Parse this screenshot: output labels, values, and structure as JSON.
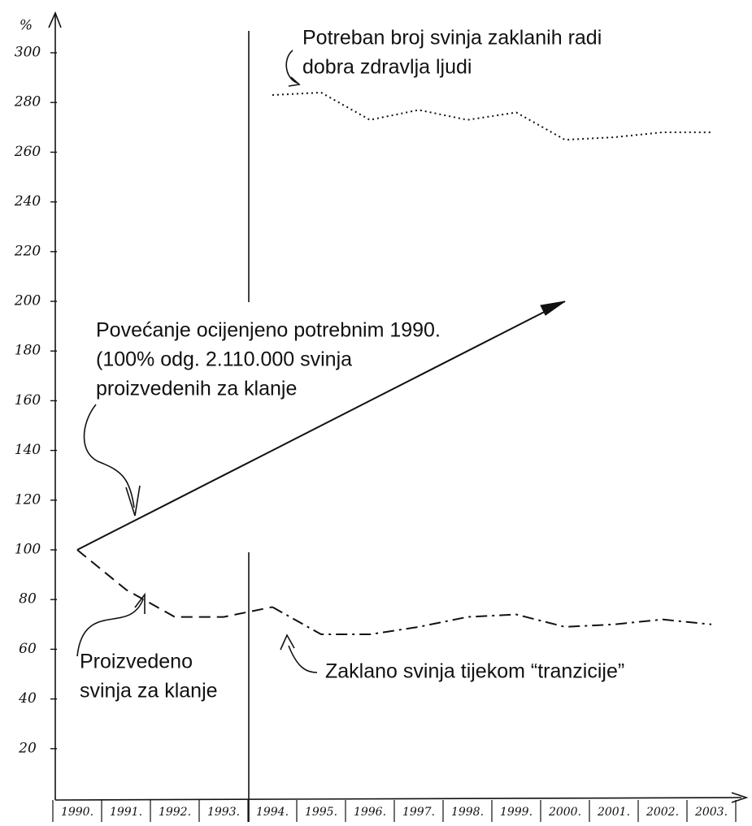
{
  "chart_data": {
    "type": "line",
    "y_label": "%",
    "categories": [
      "1990.",
      "1991.",
      "1992.",
      "1993.",
      "1994.",
      "1995.",
      "1996.",
      "1997.",
      "1998.",
      "1999.",
      "2000.",
      "2001.",
      "2002.",
      "2003."
    ],
    "series": [
      {
        "color": "#111",
        "style": "solid",
        "values": [
          100,
          110,
          120,
          130,
          140,
          150,
          160,
          170,
          180,
          190,
          200,
          null,
          null,
          null
        ]
      },
      {
        "color": "#111",
        "style": "dashed",
        "values": [
          100,
          84,
          73,
          73,
          77,
          null,
          null,
          null,
          null,
          null,
          null,
          null,
          null,
          null
        ]
      },
      {
        "color": "#111",
        "style": "dashdot",
        "values": [
          null,
          null,
          null,
          null,
          77,
          66,
          66,
          69,
          73,
          74,
          69,
          70,
          72,
          70
        ]
      },
      {
        "color": "#111",
        "style": "dotted",
        "values": [
          null,
          null,
          null,
          null,
          283,
          284,
          273,
          277,
          273,
          276,
          265,
          266,
          268,
          268
        ]
      }
    ],
    "ylim": [
      0,
      300
    ],
    "yticks": [
      20,
      40,
      60,
      80,
      100,
      120,
      140,
      160,
      180,
      200,
      220,
      240,
      260,
      280,
      300
    ],
    "annotations": [
      {
        "lines": [
          "Potreban broj svinja zaklanih radi",
          "dobra zdravlja ljudi"
        ]
      },
      {
        "lines": [
          "Povećanje ocijenjeno potrebnim 1990.",
          "(100% odg. 2.110.000 svinja",
          "proizvedenih za klanje"
        ]
      },
      {
        "lines": [
          "Proizvedeno",
          "svinja za klanje"
        ]
      },
      {
        "lines": [
          "Zaklano svinja tijekom “tranzicije”"
        ]
      }
    ]
  }
}
